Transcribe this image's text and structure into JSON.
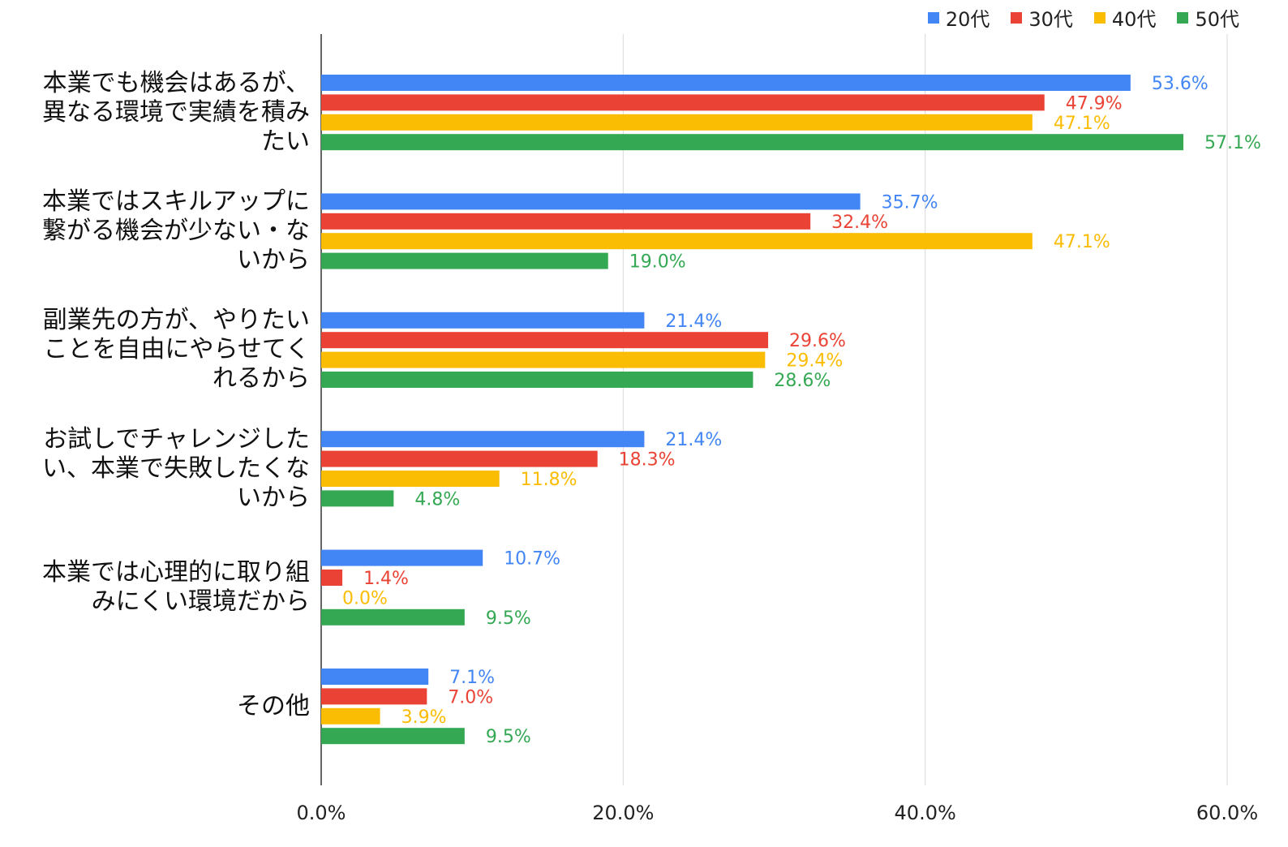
{
  "chart_data": {
    "type": "bar",
    "orientation": "horizontal",
    "categories": [
      "本業でも機会はあるが、\n異なる環境で実績を積み\nたい",
      "本業ではスキルアップに\n繋がる機会が少ない・な\nいから",
      "副業先の方が、やりたい\nことを自由にやらせてく\nれるから",
      "お試しでチャレンジした\nい、本業で失敗したくな\nいから",
      "本業では心理的に取り組\nみにくい環境だから",
      "その他"
    ],
    "series": [
      {
        "name": "20代",
        "color": "#4285F4",
        "values": [
          53.6,
          35.7,
          21.4,
          21.4,
          10.7,
          7.1
        ]
      },
      {
        "name": "30代",
        "color": "#EA4335",
        "values": [
          47.9,
          32.4,
          29.6,
          18.3,
          1.4,
          7.0
        ]
      },
      {
        "name": "40代",
        "color": "#FBBC04",
        "values": [
          47.1,
          47.1,
          29.4,
          11.8,
          0.0,
          3.9
        ]
      },
      {
        "name": "50代",
        "color": "#34A853",
        "values": [
          57.1,
          19.0,
          28.6,
          4.8,
          9.5,
          9.5
        ]
      }
    ],
    "data_labels": [
      [
        "53.6%",
        "35.7%",
        "21.4%",
        "21.4%",
        "10.7%",
        "7.1%"
      ],
      [
        "47.9%",
        "32.4%",
        "29.6%",
        "18.3%",
        "1.4%",
        "7.0%"
      ],
      [
        "47.1%",
        "47.1%",
        "29.4%",
        "11.8%",
        "0.0%",
        "3.9%"
      ],
      [
        "57.1%",
        "19.0%",
        "28.6%",
        "4.8%",
        "9.5%",
        "9.5%"
      ]
    ],
    "xlim": [
      0,
      60
    ],
    "ticks": [
      0,
      20,
      40,
      60
    ],
    "tick_labels": [
      "0.0%",
      "20.0%",
      "40.0%",
      "60.0%"
    ],
    "grid": true,
    "legend": "top-right"
  }
}
